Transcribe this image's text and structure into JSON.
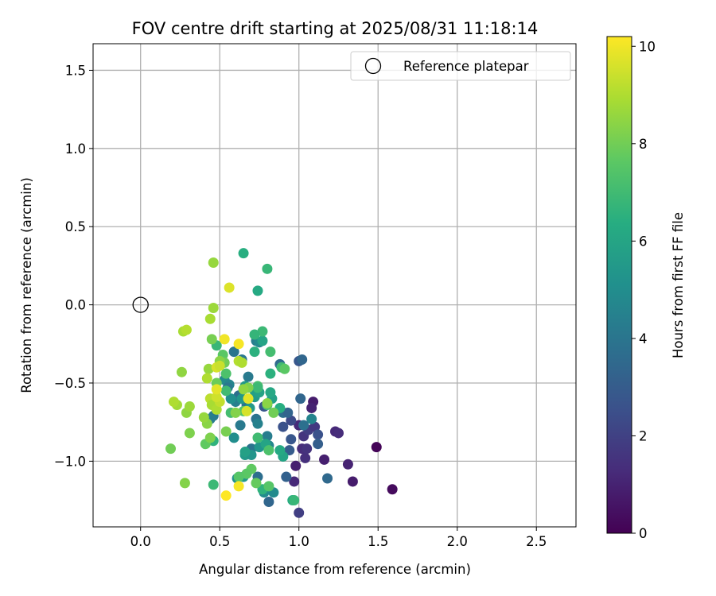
{
  "chart_data": {
    "type": "scatter",
    "title": "FOV centre drift starting at 2025/08/31 11:18:14",
    "xlabel": "Angular distance from reference (arcmin)",
    "ylabel": "Rotation from reference (arcmin)",
    "xlim": [
      -0.3,
      2.75
    ],
    "ylim": [
      -1.42,
      1.67
    ],
    "xticks": [
      "0.0",
      "0.5",
      "1.0",
      "1.5",
      "2.0",
      "2.5"
    ],
    "yticks": [
      "1.5",
      "1.0",
      "0.5",
      "0.0",
      "−0.5",
      "−1.0"
    ],
    "grid": true,
    "legend": {
      "label": "Reference platepar",
      "position": "top-right"
    },
    "reference_point": {
      "x": 0.0,
      "y": 0.0
    },
    "colorbar": {
      "label": "Hours from first FF file",
      "min": 0,
      "max": 10.2,
      "ticks": [
        "0",
        "2",
        "4",
        "6",
        "8",
        "10"
      ],
      "colormap": "viridis"
    },
    "points": [
      {
        "x": 1.49,
        "y": -0.91,
        "h": 0.1
      },
      {
        "x": 1.59,
        "y": -1.18,
        "h": 0.3
      },
      {
        "x": 1.34,
        "y": -1.13,
        "h": 0.8
      },
      {
        "x": 1.31,
        "y": -1.02,
        "h": 1.0
      },
      {
        "x": 1.23,
        "y": -0.81,
        "h": 1.2
      },
      {
        "x": 1.25,
        "y": -0.82,
        "h": 1.3
      },
      {
        "x": 1.09,
        "y": -0.62,
        "h": 0.8
      },
      {
        "x": 1.08,
        "y": -0.66,
        "h": 1.0
      },
      {
        "x": 1.16,
        "y": -0.99,
        "h": 0.9
      },
      {
        "x": 0.98,
        "y": -1.03,
        "h": 0.9
      },
      {
        "x": 0.97,
        "y": -1.13,
        "h": 1.2
      },
      {
        "x": 1.0,
        "y": -1.33,
        "h": 1.9
      },
      {
        "x": 1.02,
        "y": -0.92,
        "h": 1.3
      },
      {
        "x": 1.04,
        "y": -0.98,
        "h": 1.4
      },
      {
        "x": 1.05,
        "y": -0.92,
        "h": 1.5
      },
      {
        "x": 1.03,
        "y": -0.84,
        "h": 1.6
      },
      {
        "x": 1.06,
        "y": -0.8,
        "h": 1.9
      },
      {
        "x": 1.1,
        "y": -0.78,
        "h": 1.7
      },
      {
        "x": 1.12,
        "y": -0.83,
        "h": 2.6
      },
      {
        "x": 1.12,
        "y": -0.89,
        "h": 3.1
      },
      {
        "x": 1.18,
        "y": -1.11,
        "h": 3.5
      },
      {
        "x": 1.0,
        "y": -0.77,
        "h": 1.2
      },
      {
        "x": 0.95,
        "y": -0.74,
        "h": 2.3
      },
      {
        "x": 0.9,
        "y": -0.78,
        "h": 2.6
      },
      {
        "x": 0.95,
        "y": -0.86,
        "h": 2.8
      },
      {
        "x": 0.94,
        "y": -0.93,
        "h": 3.0
      },
      {
        "x": 0.92,
        "y": -1.1,
        "h": 3.2
      },
      {
        "x": 1.01,
        "y": -0.6,
        "h": 3.4
      },
      {
        "x": 1.0,
        "y": -0.36,
        "h": 2.8
      },
      {
        "x": 1.02,
        "y": -0.35,
        "h": 3.4
      },
      {
        "x": 0.88,
        "y": -0.38,
        "h": 3.6
      },
      {
        "x": 1.08,
        "y": -0.73,
        "h": 4.6
      },
      {
        "x": 1.03,
        "y": -0.77,
        "h": 3.8
      },
      {
        "x": 0.9,
        "y": -0.69,
        "h": 3.7
      },
      {
        "x": 0.93,
        "y": -0.69,
        "h": 3.3
      },
      {
        "x": 0.78,
        "y": -0.65,
        "h": 2.8
      },
      {
        "x": 0.73,
        "y": -0.73,
        "h": 3.9
      },
      {
        "x": 0.72,
        "y": -0.59,
        "h": 4.0
      },
      {
        "x": 0.68,
        "y": -0.46,
        "h": 4.2
      },
      {
        "x": 0.74,
        "y": -0.76,
        "h": 4.5
      },
      {
        "x": 0.8,
        "y": -0.84,
        "h": 4.3
      },
      {
        "x": 0.81,
        "y": -0.9,
        "h": 4.7
      },
      {
        "x": 0.84,
        "y": -1.2,
        "h": 4.9
      },
      {
        "x": 0.78,
        "y": -1.2,
        "h": 4.9
      },
      {
        "x": 0.81,
        "y": -1.26,
        "h": 3.4
      },
      {
        "x": 0.74,
        "y": -1.1,
        "h": 3.7
      },
      {
        "x": 0.7,
        "y": -0.92,
        "h": 3.9
      },
      {
        "x": 0.67,
        "y": -0.64,
        "h": 3.9
      },
      {
        "x": 0.62,
        "y": -0.58,
        "h": 3.7
      },
      {
        "x": 0.6,
        "y": -0.62,
        "h": 4.4
      },
      {
        "x": 0.63,
        "y": -0.77,
        "h": 4.2
      },
      {
        "x": 0.57,
        "y": -0.6,
        "h": 5.1
      },
      {
        "x": 0.53,
        "y": -0.48,
        "h": 4.9
      },
      {
        "x": 0.56,
        "y": -0.51,
        "h": 4.6
      },
      {
        "x": 0.46,
        "y": -0.71,
        "h": 4.2
      },
      {
        "x": 0.44,
        "y": -0.73,
        "h": 4.3
      },
      {
        "x": 0.55,
        "y": -0.53,
        "h": 4.1
      },
      {
        "x": 0.59,
        "y": -0.3,
        "h": 4.0
      },
      {
        "x": 0.64,
        "y": -0.35,
        "h": 4.1
      },
      {
        "x": 0.73,
        "y": -0.23,
        "h": 4.4
      },
      {
        "x": 0.75,
        "y": -0.24,
        "h": 4.8
      },
      {
        "x": 0.59,
        "y": -0.85,
        "h": 5.0
      },
      {
        "x": 0.61,
        "y": -1.11,
        "h": 5.1
      },
      {
        "x": 0.65,
        "y": -1.1,
        "h": 5.4
      },
      {
        "x": 0.66,
        "y": -0.96,
        "h": 5.5
      },
      {
        "x": 0.7,
        "y": -0.96,
        "h": 5.3
      },
      {
        "x": 0.66,
        "y": -0.94,
        "h": 5.8
      },
      {
        "x": 0.72,
        "y": -0.59,
        "h": 5.6
      },
      {
        "x": 0.66,
        "y": -0.52,
        "h": 5.5
      },
      {
        "x": 0.64,
        "y": -0.6,
        "h": 5.4
      },
      {
        "x": 0.69,
        "y": -0.66,
        "h": 5.5
      },
      {
        "x": 0.72,
        "y": -0.55,
        "h": 5.7
      },
      {
        "x": 0.75,
        "y": -0.56,
        "h": 5.9
      },
      {
        "x": 0.75,
        "y": -0.91,
        "h": 5.3
      },
      {
        "x": 0.79,
        "y": -0.89,
        "h": 6.0
      },
      {
        "x": 0.83,
        "y": -0.6,
        "h": 5.8
      },
      {
        "x": 0.82,
        "y": -0.56,
        "h": 6.1
      },
      {
        "x": 0.88,
        "y": -0.66,
        "h": 6.4
      },
      {
        "x": 0.9,
        "y": -0.97,
        "h": 6.0
      },
      {
        "x": 0.88,
        "y": -0.93,
        "h": 6.2
      },
      {
        "x": 0.96,
        "y": -1.25,
        "h": 6.3
      },
      {
        "x": 0.97,
        "y": -1.25,
        "h": 6.8
      },
      {
        "x": 0.82,
        "y": -0.44,
        "h": 6.5
      },
      {
        "x": 0.77,
        "y": -0.23,
        "h": 6.0
      },
      {
        "x": 0.77,
        "y": -0.17,
        "h": 6.9
      },
      {
        "x": 0.72,
        "y": -0.19,
        "h": 6.7
      },
      {
        "x": 0.72,
        "y": -0.3,
        "h": 6.5
      },
      {
        "x": 0.65,
        "y": 0.33,
        "h": 6.4
      },
      {
        "x": 0.74,
        "y": 0.09,
        "h": 6.2
      },
      {
        "x": 0.8,
        "y": 0.23,
        "h": 6.8
      },
      {
        "x": 0.82,
        "y": -0.3,
        "h": 7.1
      },
      {
        "x": 0.89,
        "y": -0.4,
        "h": 7.0
      },
      {
        "x": 0.91,
        "y": -0.41,
        "h": 7.6
      },
      {
        "x": 0.74,
        "y": -0.52,
        "h": 7.2
      },
      {
        "x": 0.74,
        "y": -0.53,
        "h": 6.9
      },
      {
        "x": 0.8,
        "y": -0.64,
        "h": 7.2
      },
      {
        "x": 0.74,
        "y": -0.85,
        "h": 7.0
      },
      {
        "x": 0.81,
        "y": -0.93,
        "h": 7.3
      },
      {
        "x": 0.77,
        "y": -1.18,
        "h": 6.6
      },
      {
        "x": 0.81,
        "y": -1.16,
        "h": 7.5
      },
      {
        "x": 0.73,
        "y": -1.14,
        "h": 7.8
      },
      {
        "x": 0.7,
        "y": -1.05,
        "h": 7.7
      },
      {
        "x": 0.67,
        "y": -1.08,
        "h": 7.6
      },
      {
        "x": 0.62,
        "y": -1.1,
        "h": 7.5
      },
      {
        "x": 0.54,
        "y": -0.55,
        "h": 7.0
      },
      {
        "x": 0.54,
        "y": -0.44,
        "h": 7.3
      },
      {
        "x": 0.57,
        "y": -0.69,
        "h": 7.1
      },
      {
        "x": 0.65,
        "y": -0.68,
        "h": 7.4
      },
      {
        "x": 0.48,
        "y": -0.26,
        "h": 6.8
      },
      {
        "x": 0.52,
        "y": -0.32,
        "h": 7.6
      },
      {
        "x": 0.53,
        "y": -0.37,
        "h": 8.0
      },
      {
        "x": 0.46,
        "y": -0.87,
        "h": 6.6
      },
      {
        "x": 0.46,
        "y": -1.15,
        "h": 6.9
      },
      {
        "x": 0.41,
        "y": -0.89,
        "h": 7.7
      },
      {
        "x": 0.45,
        "y": -0.22,
        "h": 8.1
      },
      {
        "x": 0.5,
        "y": -0.36,
        "h": 8.4
      },
      {
        "x": 0.48,
        "y": -0.5,
        "h": 7.9
      },
      {
        "x": 0.84,
        "y": -0.69,
        "h": 8.0
      },
      {
        "x": 0.8,
        "y": -0.63,
        "h": 8.4
      },
      {
        "x": 0.68,
        "y": -0.53,
        "h": 8.2
      },
      {
        "x": 0.65,
        "y": -0.54,
        "h": 8.5
      },
      {
        "x": 0.6,
        "y": -0.69,
        "h": 8.3
      },
      {
        "x": 0.54,
        "y": -0.81,
        "h": 8.1
      },
      {
        "x": 0.44,
        "y": -0.85,
        "h": 8.2
      },
      {
        "x": 0.42,
        "y": -0.76,
        "h": 8.4
      },
      {
        "x": 0.4,
        "y": -0.72,
        "h": 8.6
      },
      {
        "x": 0.31,
        "y": -0.82,
        "h": 8.2
      },
      {
        "x": 0.29,
        "y": -0.69,
        "h": 8.5
      },
      {
        "x": 0.31,
        "y": -0.65,
        "h": 8.7
      },
      {
        "x": 0.19,
        "y": -0.92,
        "h": 8.0
      },
      {
        "x": 0.28,
        "y": -1.14,
        "h": 8.3
      },
      {
        "x": 0.23,
        "y": -0.64,
        "h": 8.8
      },
      {
        "x": 0.21,
        "y": -0.62,
        "h": 9.0
      },
      {
        "x": 0.26,
        "y": -0.43,
        "h": 8.5
      },
      {
        "x": 0.27,
        "y": -0.17,
        "h": 8.9
      },
      {
        "x": 0.29,
        "y": -0.16,
        "h": 9.1
      },
      {
        "x": 0.46,
        "y": 0.27,
        "h": 8.6
      },
      {
        "x": 0.46,
        "y": -0.02,
        "h": 8.7
      },
      {
        "x": 0.44,
        "y": -0.09,
        "h": 8.9
      },
      {
        "x": 0.43,
        "y": -0.41,
        "h": 8.6
      },
      {
        "x": 0.42,
        "y": -0.47,
        "h": 9.0
      },
      {
        "x": 0.44,
        "y": -0.6,
        "h": 9.2
      },
      {
        "x": 0.45,
        "y": -0.64,
        "h": 8.9
      },
      {
        "x": 0.48,
        "y": -0.67,
        "h": 9.0
      },
      {
        "x": 0.5,
        "y": -0.62,
        "h": 9.3
      },
      {
        "x": 0.48,
        "y": -0.59,
        "h": 9.5
      },
      {
        "x": 0.48,
        "y": -0.4,
        "h": 9.6
      },
      {
        "x": 0.5,
        "y": -0.39,
        "h": 9.4
      },
      {
        "x": 0.56,
        "y": 0.11,
        "h": 9.7
      },
      {
        "x": 0.62,
        "y": -0.36,
        "h": 9.1
      },
      {
        "x": 0.64,
        "y": -0.37,
        "h": 9.0
      },
      {
        "x": 0.68,
        "y": -0.6,
        "h": 9.8
      },
      {
        "x": 0.67,
        "y": -0.68,
        "h": 9.6
      },
      {
        "x": 0.48,
        "y": -0.54,
        "h": 9.8
      },
      {
        "x": 0.53,
        "y": -0.22,
        "h": 10.0
      },
      {
        "x": 0.62,
        "y": -0.25,
        "h": 10.1
      },
      {
        "x": 0.54,
        "y": -1.22,
        "h": 10.2
      },
      {
        "x": 0.62,
        "y": -1.16,
        "h": 10.1
      }
    ]
  }
}
